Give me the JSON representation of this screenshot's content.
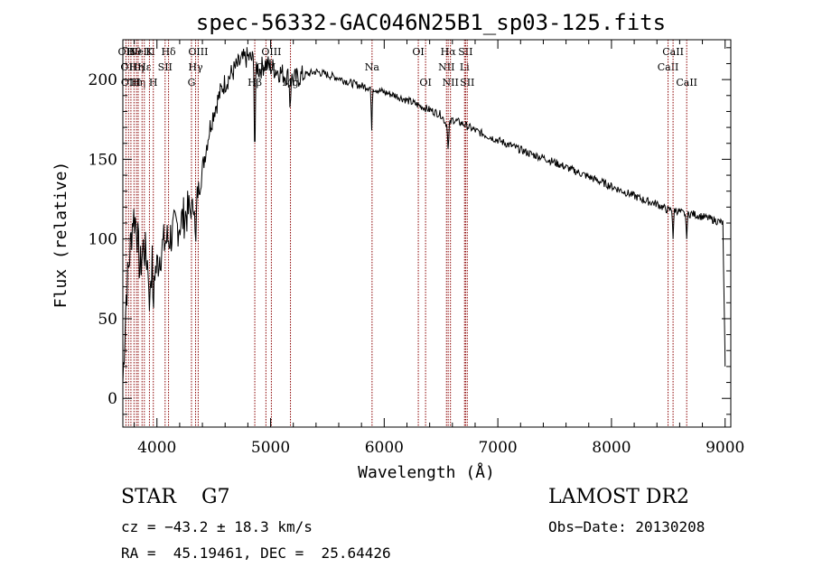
{
  "chart_data": {
    "type": "line",
    "title": "spec-56332-GAC046N25B1_sp03-125.fits",
    "xlabel": "Wavelength (Å)",
    "ylabel": "Flux (relative)",
    "xlim": [
      3700,
      9050
    ],
    "ylim": [
      -18,
      225
    ],
    "x_ticks": [
      4000,
      5000,
      6000,
      7000,
      8000,
      9000
    ],
    "y_ticks": [
      0,
      50,
      100,
      150,
      200
    ],
    "x_tick_labels": [
      "4000",
      "5000",
      "6000",
      "7000",
      "8000",
      "9000"
    ],
    "y_tick_labels": [
      "0",
      "50",
      "100",
      "150",
      "200"
    ],
    "grid": false,
    "series": [
      {
        "x": [
          3700,
          3730,
          3760,
          3790,
          3820,
          3850,
          3880,
          3910,
          3940,
          3960,
          3990,
          4030,
          4070,
          4100,
          4140,
          4180,
          4220,
          4260,
          4300,
          4340,
          4380,
          4420,
          4460,
          4500,
          4540,
          4580,
          4620,
          4660,
          4700,
          4750,
          4800,
          4850,
          4900,
          4950,
          5000,
          5050,
          5100,
          5150,
          5200,
          5300,
          5400,
          5500,
          5600,
          5700,
          5800,
          5890,
          6000,
          6100,
          6200,
          6300,
          6400,
          6500,
          6563,
          6600,
          6700,
          6800,
          6900,
          7000,
          7100,
          7200,
          7300,
          7400,
          7500,
          7600,
          7700,
          7800,
          7900,
          8000,
          8100,
          8200,
          8300,
          8400,
          8498,
          8542,
          8600,
          8662,
          8700,
          8800,
          8900,
          8980,
          9000
        ],
        "y": [
          10,
          65,
          90,
          115,
          110,
          80,
          95,
          88,
          75,
          85,
          80,
          92,
          98,
          100,
          104,
          108,
          112,
          116,
          118,
          124,
          135,
          152,
          168,
          180,
          188,
          196,
          200,
          204,
          208,
          212,
          214,
          212,
          206,
          210,
          208,
          206,
          204,
          202,
          200,
          203,
          205,
          203,
          201,
          198,
          196,
          195,
          192,
          190,
          187,
          184,
          181,
          178,
          170,
          175,
          172,
          168,
          165,
          162,
          159,
          156,
          153,
          151,
          148,
          145,
          142,
          139,
          136,
          133,
          130,
          127,
          124,
          122,
          118,
          119,
          117,
          115,
          116,
          114,
          112,
          110,
          20
        ],
        "absorption_dips": [
          {
            "x": 3934,
            "y": 55
          },
          {
            "x": 3968,
            "y": 50
          },
          {
            "x": 4340,
            "y": 92
          },
          {
            "x": 4861,
            "y": 140
          },
          {
            "x": 5172,
            "y": 178
          },
          {
            "x": 5890,
            "y": 168
          },
          {
            "x": 6563,
            "y": 155
          },
          {
            "x": 8542,
            "y": 100
          },
          {
            "x": 8662,
            "y": 100
          }
        ]
      }
    ],
    "line_markers": [
      {
        "x": 3727,
        "tier": 0,
        "label": "OII"
      },
      {
        "x": 3750,
        "tier": 1,
        "label": "OII"
      },
      {
        "x": 3771,
        "tier": 2,
        "label": "OIII"
      },
      {
        "x": 3798,
        "tier": 0,
        "label": "Hθ"
      },
      {
        "x": 3820,
        "tier": 1,
        "label": "Hη"
      },
      {
        "x": 3835,
        "tier": 2,
        "label": "Hη"
      },
      {
        "x": 3869,
        "tier": 0,
        "label": "NeIII"
      },
      {
        "x": 3889,
        "tier": 1,
        "label": "Hε"
      },
      {
        "x": 3934,
        "tier": 0,
        "label": "K"
      },
      {
        "x": 3968,
        "tier": 2,
        "label": "H"
      },
      {
        "x": 4072,
        "tier": 1,
        "label": "SII"
      },
      {
        "x": 4102,
        "tier": 0,
        "label": "Hδ"
      },
      {
        "x": 4304,
        "tier": 2,
        "label": "G"
      },
      {
        "x": 4340,
        "tier": 1,
        "label": "Hγ"
      },
      {
        "x": 4363,
        "tier": 0,
        "label": "OIII"
      },
      {
        "x": 4861,
        "tier": 2,
        "label": "Hβ"
      },
      {
        "x": 4959,
        "tier": 1,
        "label": "OIII"
      },
      {
        "x": 5007,
        "tier": 0,
        "label": "OIII"
      },
      {
        "x": 5175,
        "tier": 2,
        "label": "Mg"
      },
      {
        "x": 5893,
        "tier": 1,
        "label": "Na"
      },
      {
        "x": 6300,
        "tier": 0,
        "label": "OI"
      },
      {
        "x": 6364,
        "tier": 2,
        "label": "OI"
      },
      {
        "x": 6548,
        "tier": 1,
        "label": "NII"
      },
      {
        "x": 6563,
        "tier": 0,
        "label": "Hα"
      },
      {
        "x": 6583,
        "tier": 2,
        "label": "NII"
      },
      {
        "x": 6707,
        "tier": 1,
        "label": "Li"
      },
      {
        "x": 6716,
        "tier": 0,
        "label": "SII"
      },
      {
        "x": 6731,
        "tier": 2,
        "label": "SII"
      },
      {
        "x": 8498,
        "tier": 1,
        "label": "CaII"
      },
      {
        "x": 8542,
        "tier": 0,
        "label": "CaII"
      },
      {
        "x": 8662,
        "tier": 2,
        "label": "CaII"
      }
    ],
    "colors": {
      "spectrum": "#000000",
      "markers": "#8b0000",
      "axes": "#000000"
    }
  },
  "footer": {
    "object_class": "STAR    G7",
    "survey": "LAMOST DR2",
    "cz": "cz = −43.2 ± 18.3 km/s",
    "obs_date": "Obs−Date: 20130208",
    "coords": "RA =  45.19461, DEC =  25.64426"
  }
}
